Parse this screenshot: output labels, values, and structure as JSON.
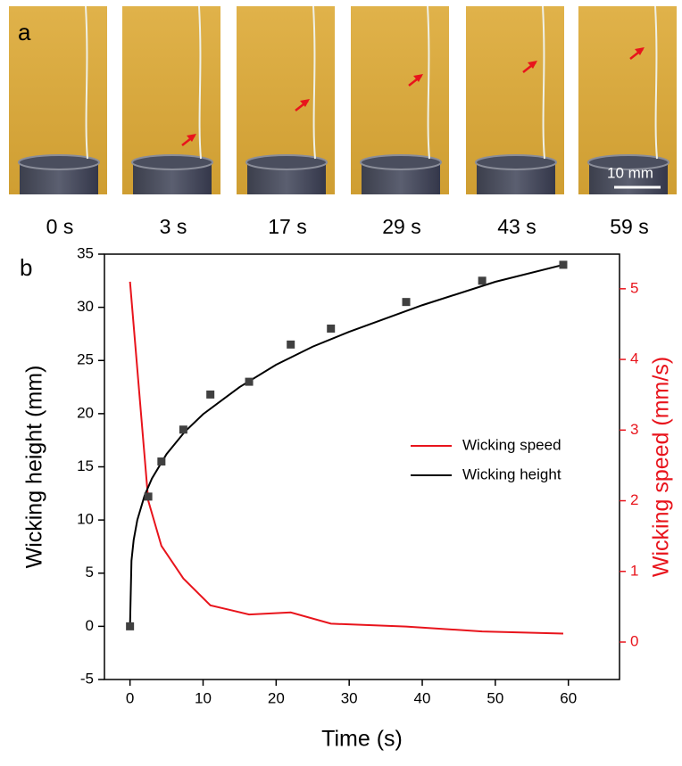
{
  "panel_a": {
    "label": "a",
    "times": [
      "0 s",
      "3 s",
      "17 s",
      "29 s",
      "43 s",
      "59 s"
    ],
    "scale_bar": "10 mm"
  },
  "chart_data": {
    "type": "line",
    "label": "b",
    "x_label": "Time (s)",
    "y_label": "Wicking height (mm)",
    "y2_label": "Wicking speed (mm/s)",
    "xlim": [
      -3.5,
      67
    ],
    "xticks": [
      0,
      10,
      20,
      30,
      40,
      50,
      60
    ],
    "ylim": [
      -5,
      35
    ],
    "yticks": [
      -5,
      0,
      5,
      10,
      15,
      20,
      25,
      30,
      35
    ],
    "y2lim": [
      -0.53,
      5.49
    ],
    "y2ticks": [
      0,
      1,
      2,
      3,
      4,
      5
    ],
    "y2_color": "#e8141c",
    "grid": false,
    "legend": "center right",
    "series": [
      {
        "name": "Wicking speed",
        "color": "#e8141c",
        "axis": "y2",
        "x": [
          0,
          2.5,
          4.3,
          7.3,
          11,
          16.3,
          22,
          27.5,
          37.8,
          48.2,
          59.3
        ],
        "values": [
          5.1,
          2.0,
          1.36,
          0.9,
          0.52,
          0.39,
          0.42,
          0.26,
          0.22,
          0.15,
          0.12
        ]
      },
      {
        "name": "Wicking height",
        "color": "#000000",
        "x": [
          0,
          0.2,
          0.5,
          1,
          2,
          3,
          5,
          7.5,
          10,
          15,
          20,
          25,
          30,
          40,
          50,
          59.3
        ],
        "values": [
          0,
          6.17,
          8.12,
          10,
          12.31,
          13.9,
          16.2,
          18.3,
          19.95,
          22.5,
          24.6,
          26.3,
          27.7,
          30.2,
          32.4,
          34.0
        ]
      }
    ],
    "points": {
      "color": "#404040",
      "marker": "square",
      "x": [
        0,
        2.5,
        4.3,
        7.3,
        11,
        16.3,
        22,
        27.5,
        37.8,
        48.2,
        59.3
      ],
      "values": [
        0,
        12.2,
        15.5,
        18.5,
        21.8,
        23,
        26.5,
        28,
        30.5,
        32.5,
        34
      ]
    }
  }
}
